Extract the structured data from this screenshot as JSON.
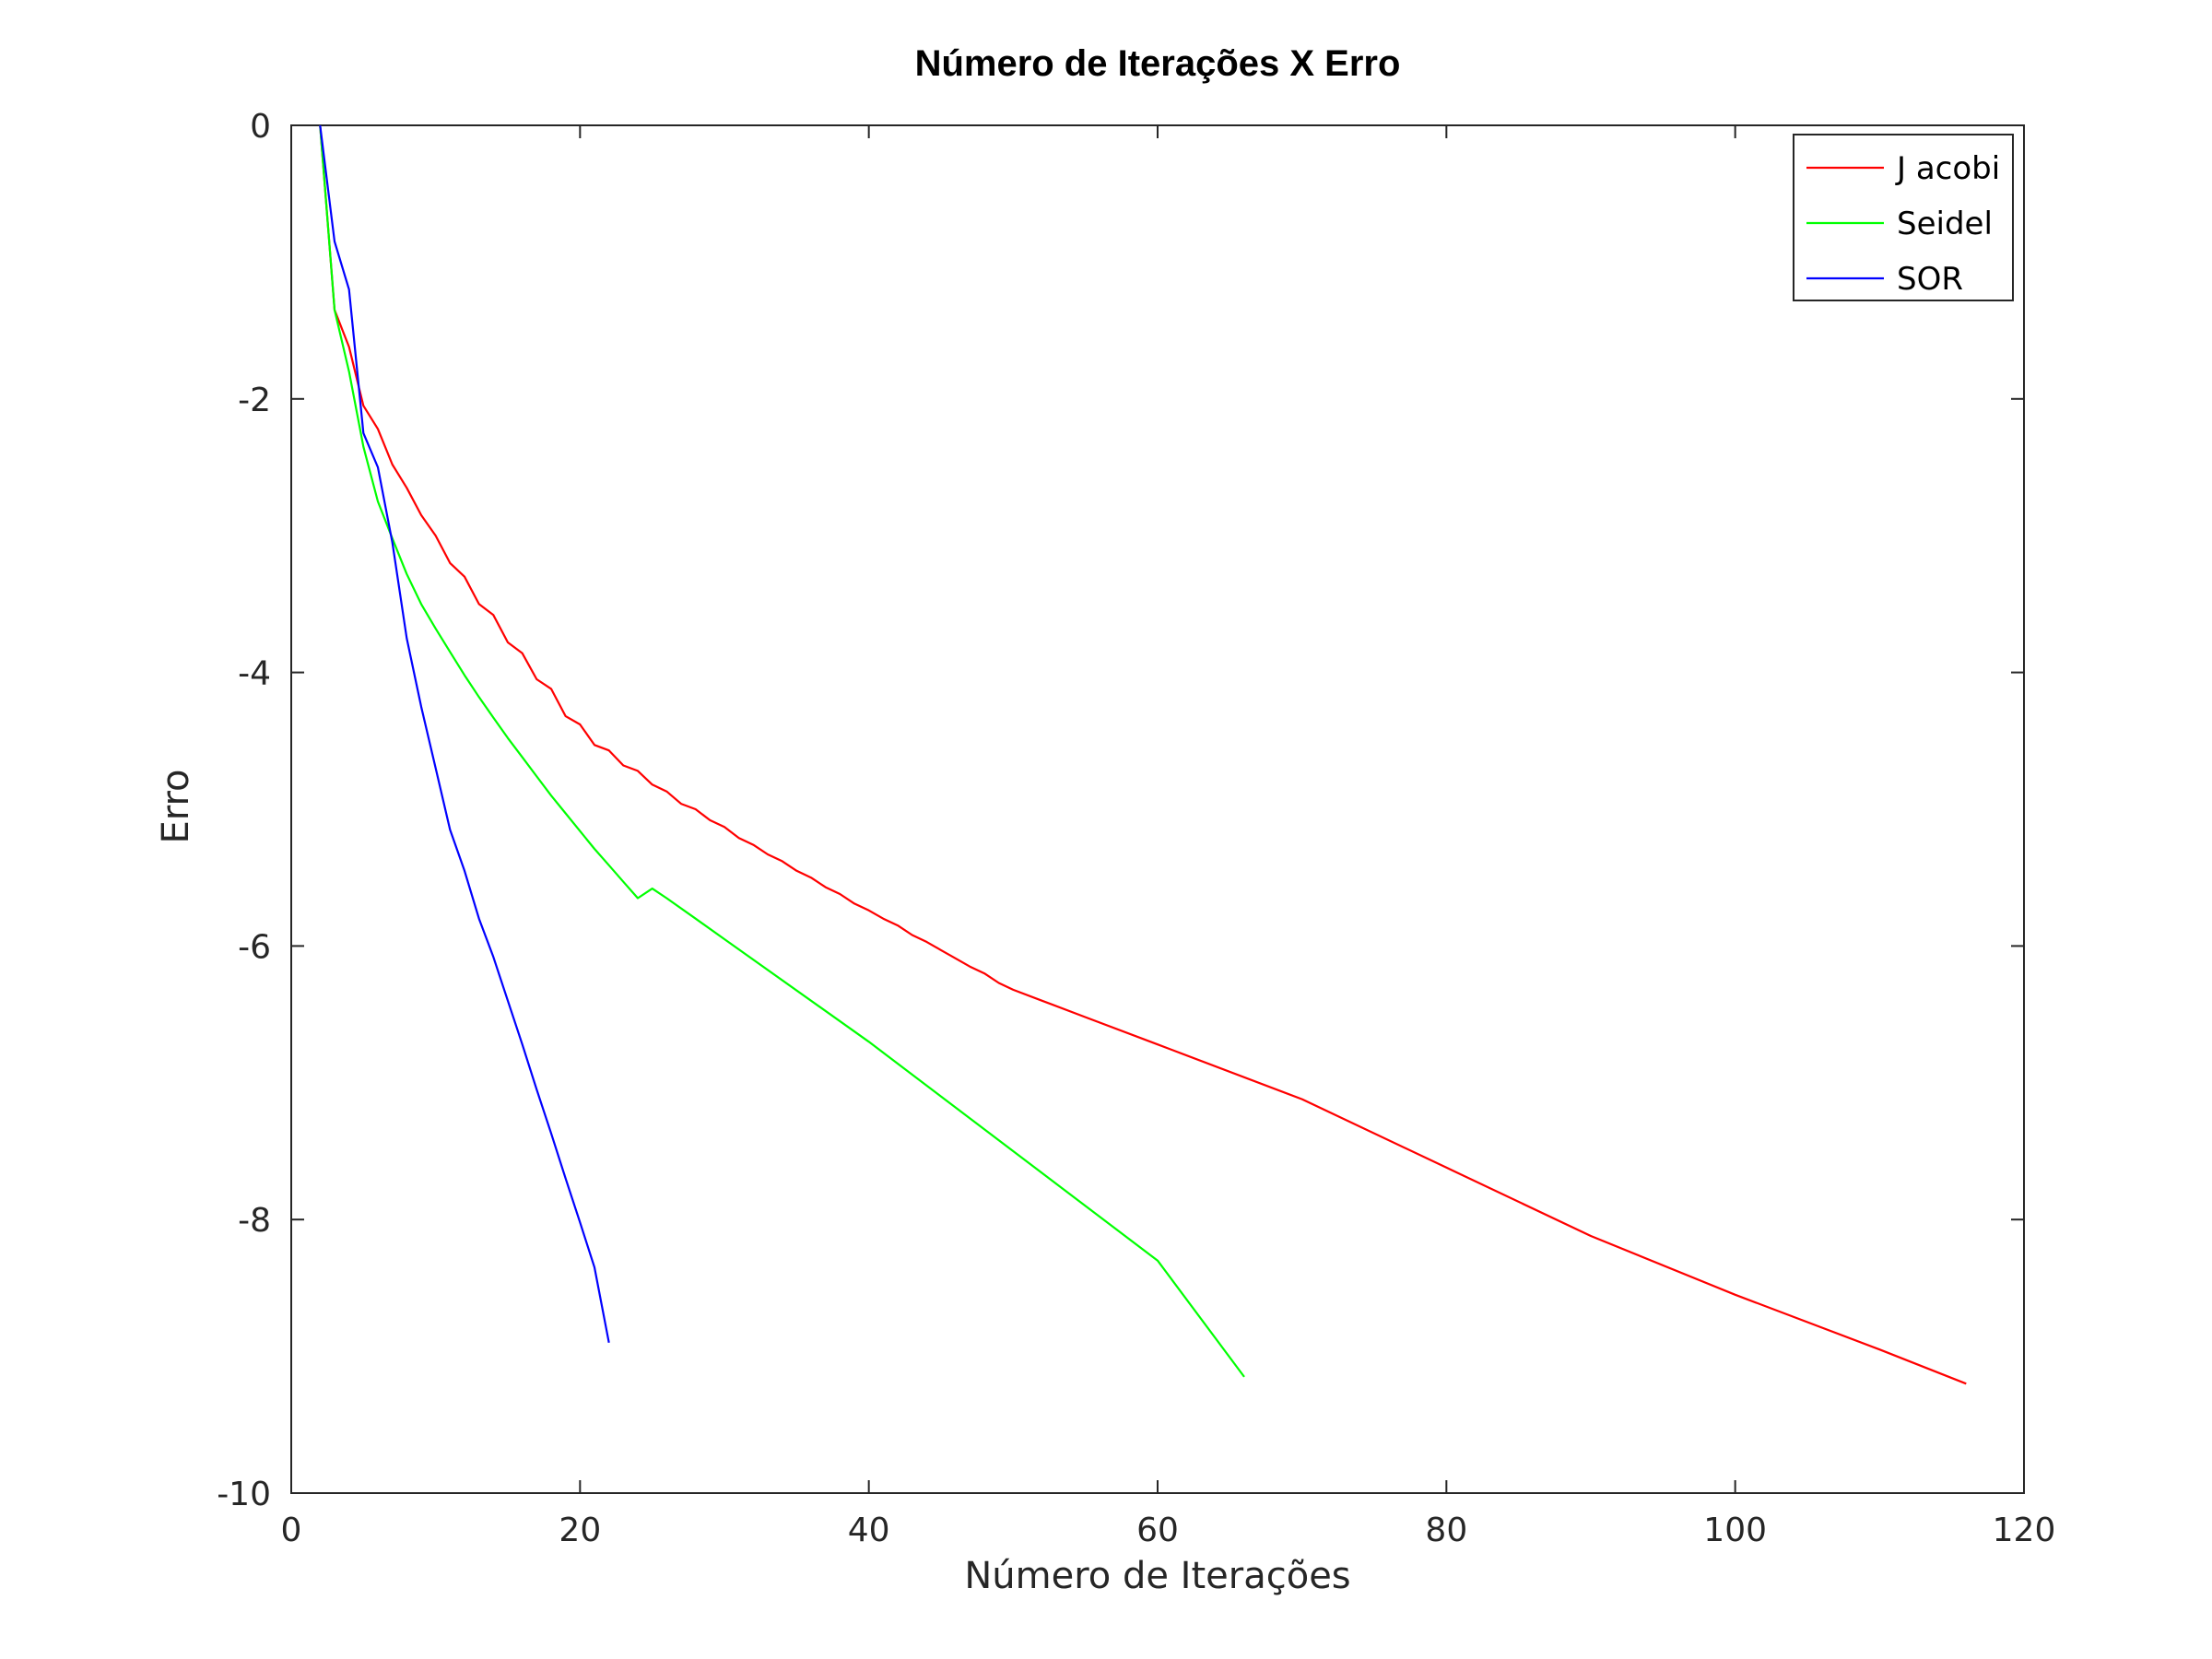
{
  "chart_data": {
    "type": "line",
    "title": "Número de Iterações X Erro",
    "xlabel": "Número de Iterações",
    "ylabel": "Erro",
    "xlim": [
      0,
      120
    ],
    "ylim": [
      -10,
      0
    ],
    "xticks": [
      0,
      20,
      40,
      60,
      80,
      100,
      120
    ],
    "yticks": [
      0,
      -2,
      -4,
      -6,
      -8,
      -10
    ],
    "grid": false,
    "legend_position": "top-right",
    "series": [
      {
        "name": "J acobi",
        "color": "#ff0000",
        "points": [
          [
            2,
            0
          ],
          [
            3,
            -1.35
          ],
          [
            4,
            -1.62
          ],
          [
            5,
            -2.05
          ],
          [
            6,
            -2.22
          ],
          [
            7,
            -2.48
          ],
          [
            8,
            -2.65
          ],
          [
            9,
            -2.85
          ],
          [
            10,
            -3.0
          ],
          [
            11,
            -3.2
          ],
          [
            12,
            -3.3
          ],
          [
            13,
            -3.5
          ],
          [
            14,
            -3.58
          ],
          [
            15,
            -3.78
          ],
          [
            16,
            -3.86
          ],
          [
            17,
            -4.05
          ],
          [
            18,
            -4.12
          ],
          [
            19,
            -4.32
          ],
          [
            20,
            -4.38
          ],
          [
            21,
            -4.53
          ],
          [
            22,
            -4.57
          ],
          [
            23,
            -4.68
          ],
          [
            24,
            -4.72
          ],
          [
            25,
            -4.82
          ],
          [
            26,
            -4.87
          ],
          [
            27,
            -4.96
          ],
          [
            28,
            -5.0
          ],
          [
            29,
            -5.08
          ],
          [
            30,
            -5.13
          ],
          [
            31,
            -5.21
          ],
          [
            32,
            -5.26
          ],
          [
            33,
            -5.33
          ],
          [
            34,
            -5.38
          ],
          [
            35,
            -5.45
          ],
          [
            36,
            -5.5
          ],
          [
            37,
            -5.57
          ],
          [
            38,
            -5.62
          ],
          [
            39,
            -5.69
          ],
          [
            40,
            -5.74
          ],
          [
            41,
            -5.8
          ],
          [
            42,
            -5.85
          ],
          [
            43,
            -5.92
          ],
          [
            44,
            -5.97
          ],
          [
            45,
            -6.03
          ],
          [
            46,
            -6.09
          ],
          [
            47,
            -6.15
          ],
          [
            48,
            -6.2
          ],
          [
            49,
            -6.27
          ],
          [
            50,
            -6.32
          ],
          [
            52,
            -6.4
          ],
          [
            55,
            -6.52
          ],
          [
            60,
            -6.72
          ],
          [
            70,
            -7.12
          ],
          [
            80,
            -7.62
          ],
          [
            90,
            -8.12
          ],
          [
            100,
            -8.55
          ],
          [
            110,
            -8.95
          ],
          [
            116,
            -9.2
          ]
        ]
      },
      {
        "name": "Seidel",
        "color": "#00ff00",
        "points": [
          [
            2,
            0
          ],
          [
            3,
            -1.35
          ],
          [
            4,
            -1.8
          ],
          [
            5,
            -2.35
          ],
          [
            6,
            -2.75
          ],
          [
            7,
            -3.02
          ],
          [
            8,
            -3.28
          ],
          [
            9,
            -3.5
          ],
          [
            10,
            -3.68
          ],
          [
            11,
            -3.85
          ],
          [
            12,
            -4.02
          ],
          [
            13,
            -4.18
          ],
          [
            14,
            -4.33
          ],
          [
            15,
            -4.48
          ],
          [
            16,
            -4.62
          ],
          [
            17,
            -4.76
          ],
          [
            18,
            -4.9
          ],
          [
            19,
            -5.03
          ],
          [
            20,
            -5.16
          ],
          [
            21,
            -5.29
          ],
          [
            22,
            -5.41
          ],
          [
            23,
            -5.53
          ],
          [
            24,
            -5.65
          ],
          [
            25,
            -5.58
          ],
          [
            26,
            -5.65
          ],
          [
            28,
            -5.8
          ],
          [
            30,
            -5.95
          ],
          [
            40,
            -6.7
          ],
          [
            50,
            -7.5
          ],
          [
            60,
            -8.3
          ],
          [
            66,
            -9.15
          ]
        ]
      },
      {
        "name": "SOR",
        "color": "#0000ff",
        "points": [
          [
            2,
            0
          ],
          [
            3,
            -0.85
          ],
          [
            4,
            -1.2
          ],
          [
            5,
            -2.25
          ],
          [
            6,
            -2.5
          ],
          [
            7,
            -3.05
          ],
          [
            8,
            -3.75
          ],
          [
            9,
            -4.25
          ],
          [
            10,
            -4.7
          ],
          [
            11,
            -5.15
          ],
          [
            12,
            -5.45
          ],
          [
            13,
            -5.8
          ],
          [
            14,
            -6.08
          ],
          [
            15,
            -6.4
          ],
          [
            16,
            -6.72
          ],
          [
            17,
            -7.05
          ],
          [
            18,
            -7.37
          ],
          [
            19,
            -7.7
          ],
          [
            20,
            -8.02
          ],
          [
            21,
            -8.35
          ],
          [
            22,
            -8.9
          ]
        ]
      }
    ]
  }
}
